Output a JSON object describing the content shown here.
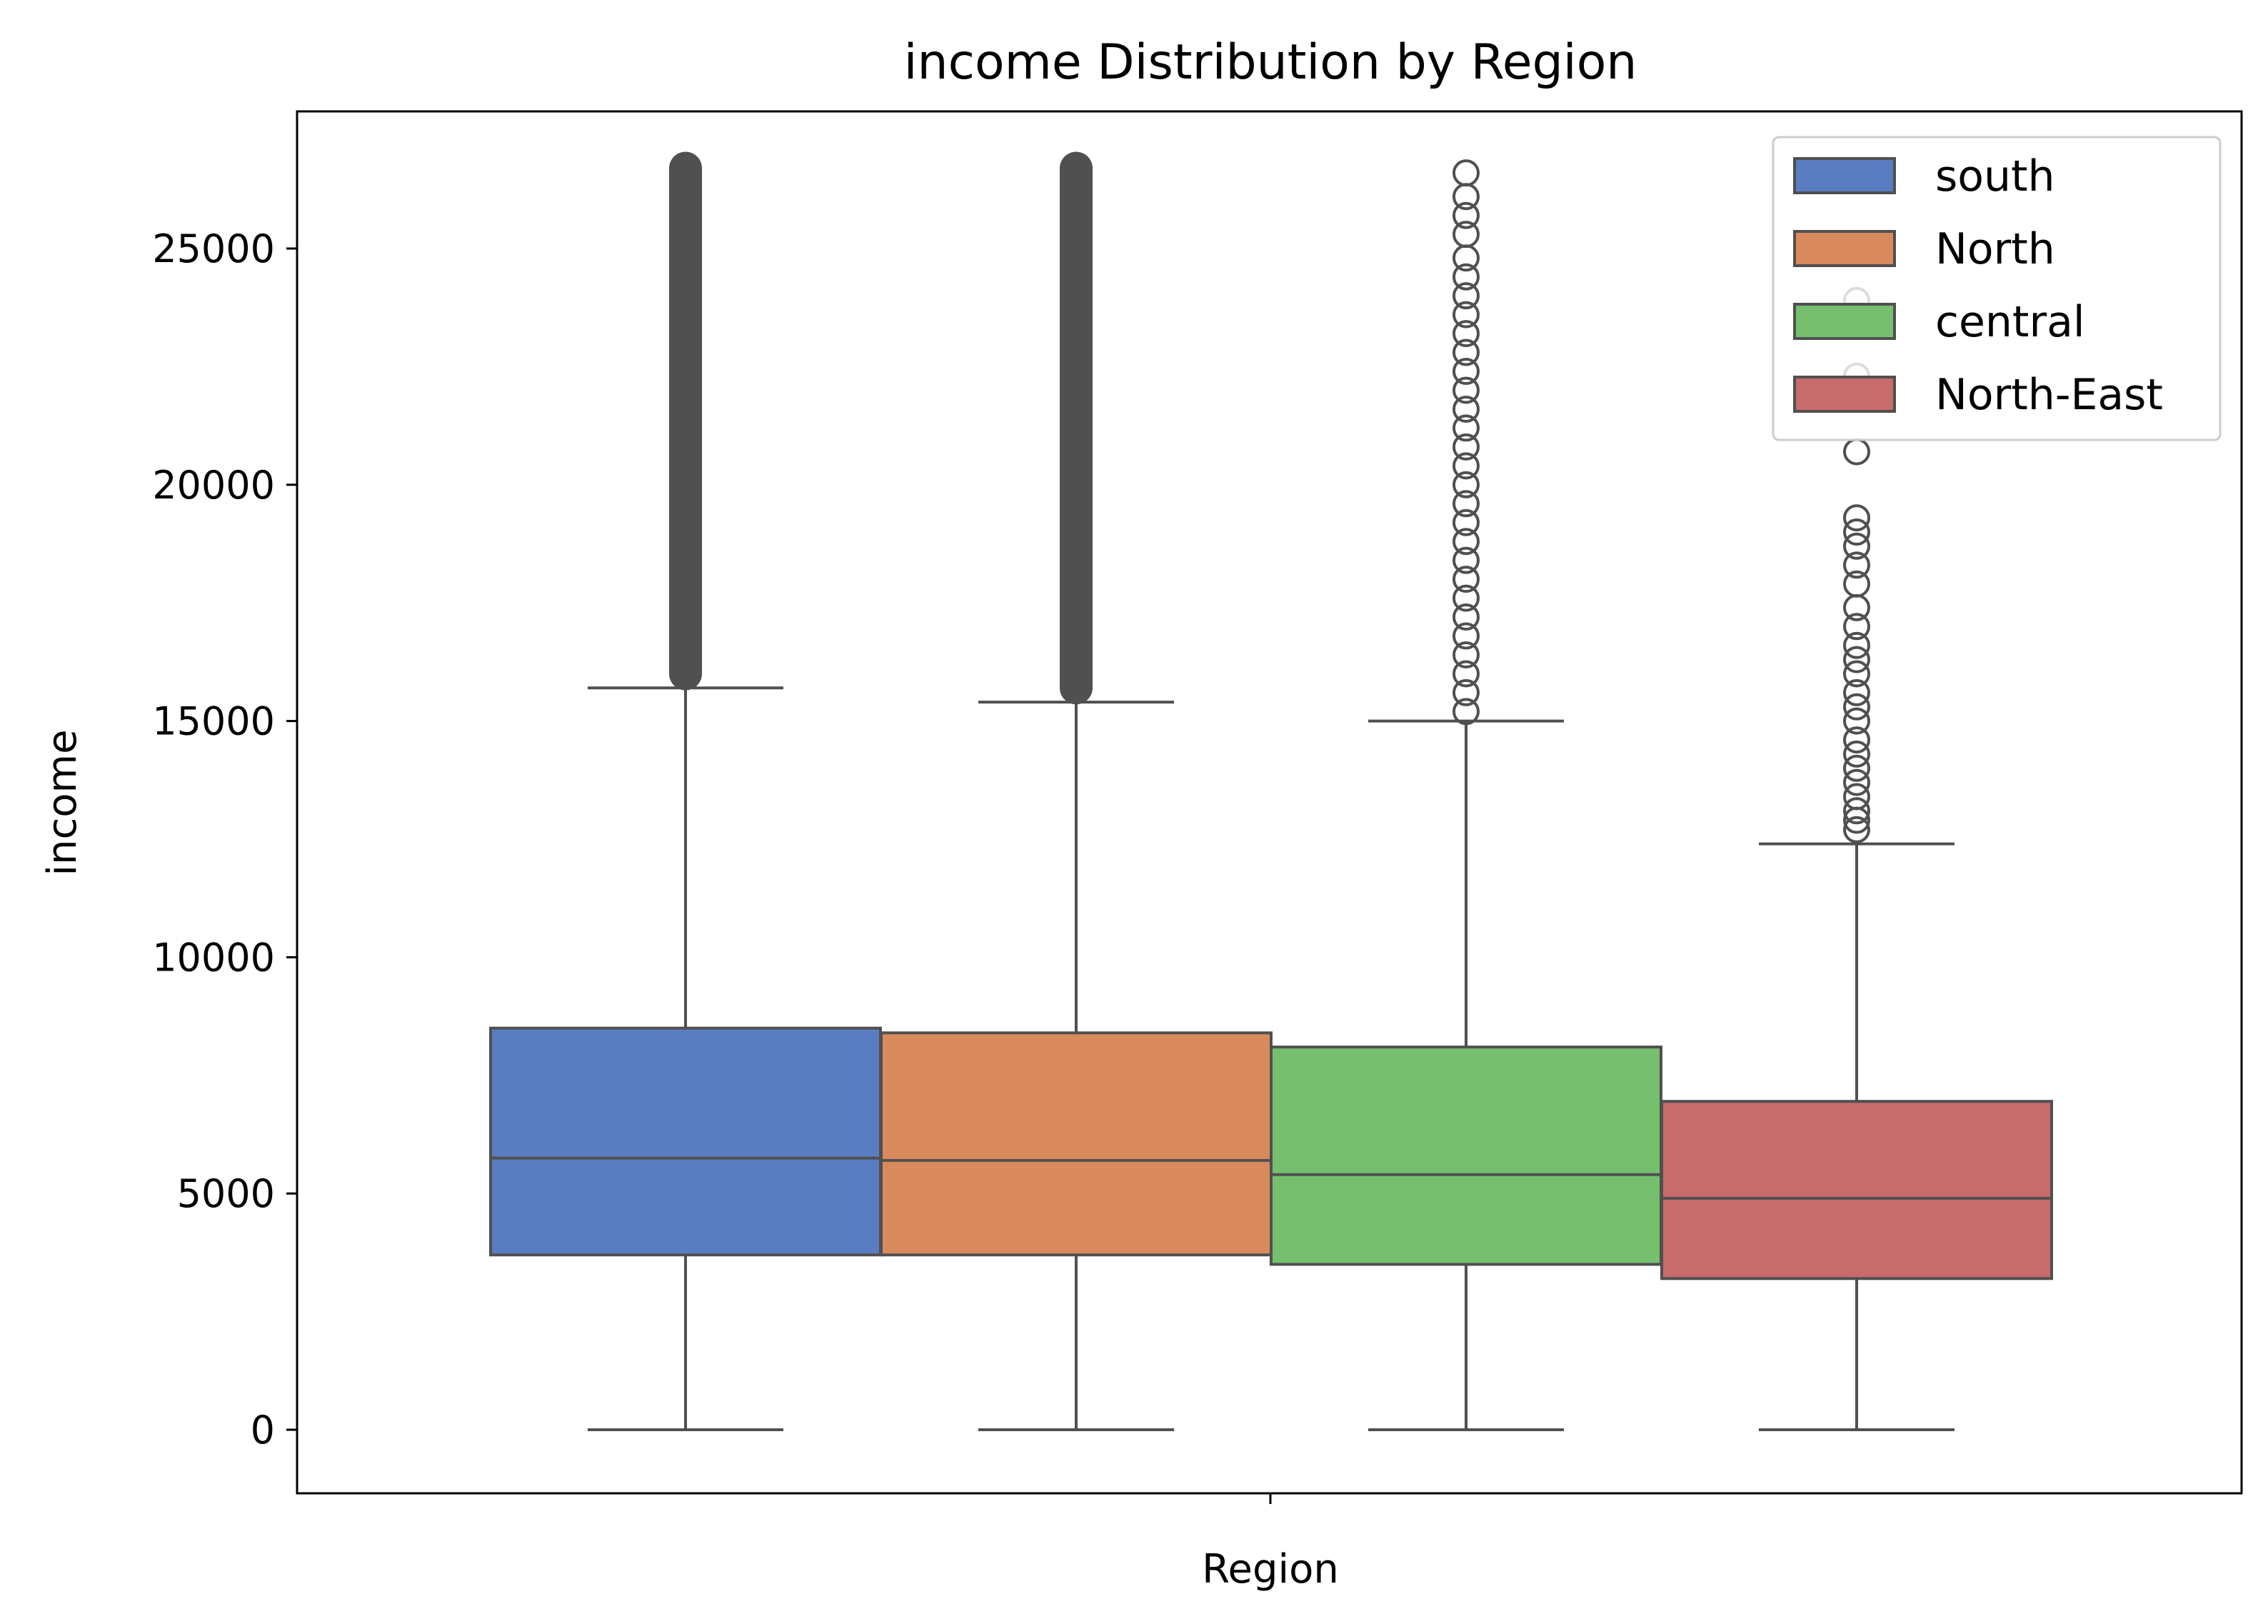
{
  "chart_data": {
    "type": "box",
    "title": "income Distribution by Region",
    "xlabel": "Region",
    "ylabel": "income",
    "ylim": [
      -1300,
      28000
    ],
    "yticks": [
      0,
      5000,
      10000,
      15000,
      20000,
      25000
    ],
    "grid": false,
    "legend_position": "top-right",
    "series": [
      {
        "name": "south",
        "color": "#5a7dc1",
        "whisker_low": 0,
        "q1": 3700,
        "median": 5750,
        "q3": 8500,
        "whisker_high": 15700,
        "outliers": [
          16000,
          17000,
          18000,
          19000,
          20000,
          21000,
          22000,
          23000,
          24000,
          25000,
          26000,
          26700
        ],
        "outlier_style": "dense"
      },
      {
        "name": "North",
        "color": "#d98a5d",
        "whisker_low": 0,
        "q1": 3700,
        "median": 5700,
        "q3": 8400,
        "whisker_high": 15400,
        "outliers": [
          15700,
          16500,
          17500,
          18500,
          19500,
          20500,
          21500,
          22500,
          23500,
          24500,
          25500,
          26700
        ],
        "outlier_style": "dense"
      },
      {
        "name": "central",
        "color": "#75bf6e",
        "whisker_low": 0,
        "q1": 3500,
        "median": 5400,
        "q3": 8100,
        "whisker_high": 15000,
        "outliers": [
          15200,
          15600,
          16000,
          16400,
          16800,
          17200,
          17600,
          18000,
          18400,
          18800,
          19200,
          19600,
          20000,
          20400,
          20800,
          21200,
          21600,
          22000,
          22400,
          22800,
          23200,
          23600,
          24000,
          24400,
          24800,
          25300,
          25700,
          26100,
          26600
        ],
        "outlier_style": "open"
      },
      {
        "name": "North-East",
        "color": "#c76b6b",
        "whisker_low": 0,
        "q1": 3200,
        "median": 4900,
        "q3": 6950,
        "whisker_high": 12400,
        "outliers": [
          12700,
          12900,
          13100,
          13400,
          13700,
          14000,
          14300,
          14600,
          15000,
          15300,
          15600,
          16000,
          16300,
          16600,
          17000,
          17400,
          17900,
          18300,
          18700,
          19000,
          19300,
          20700,
          22300,
          23900,
          25100
        ],
        "outlier_style": "open"
      }
    ]
  }
}
